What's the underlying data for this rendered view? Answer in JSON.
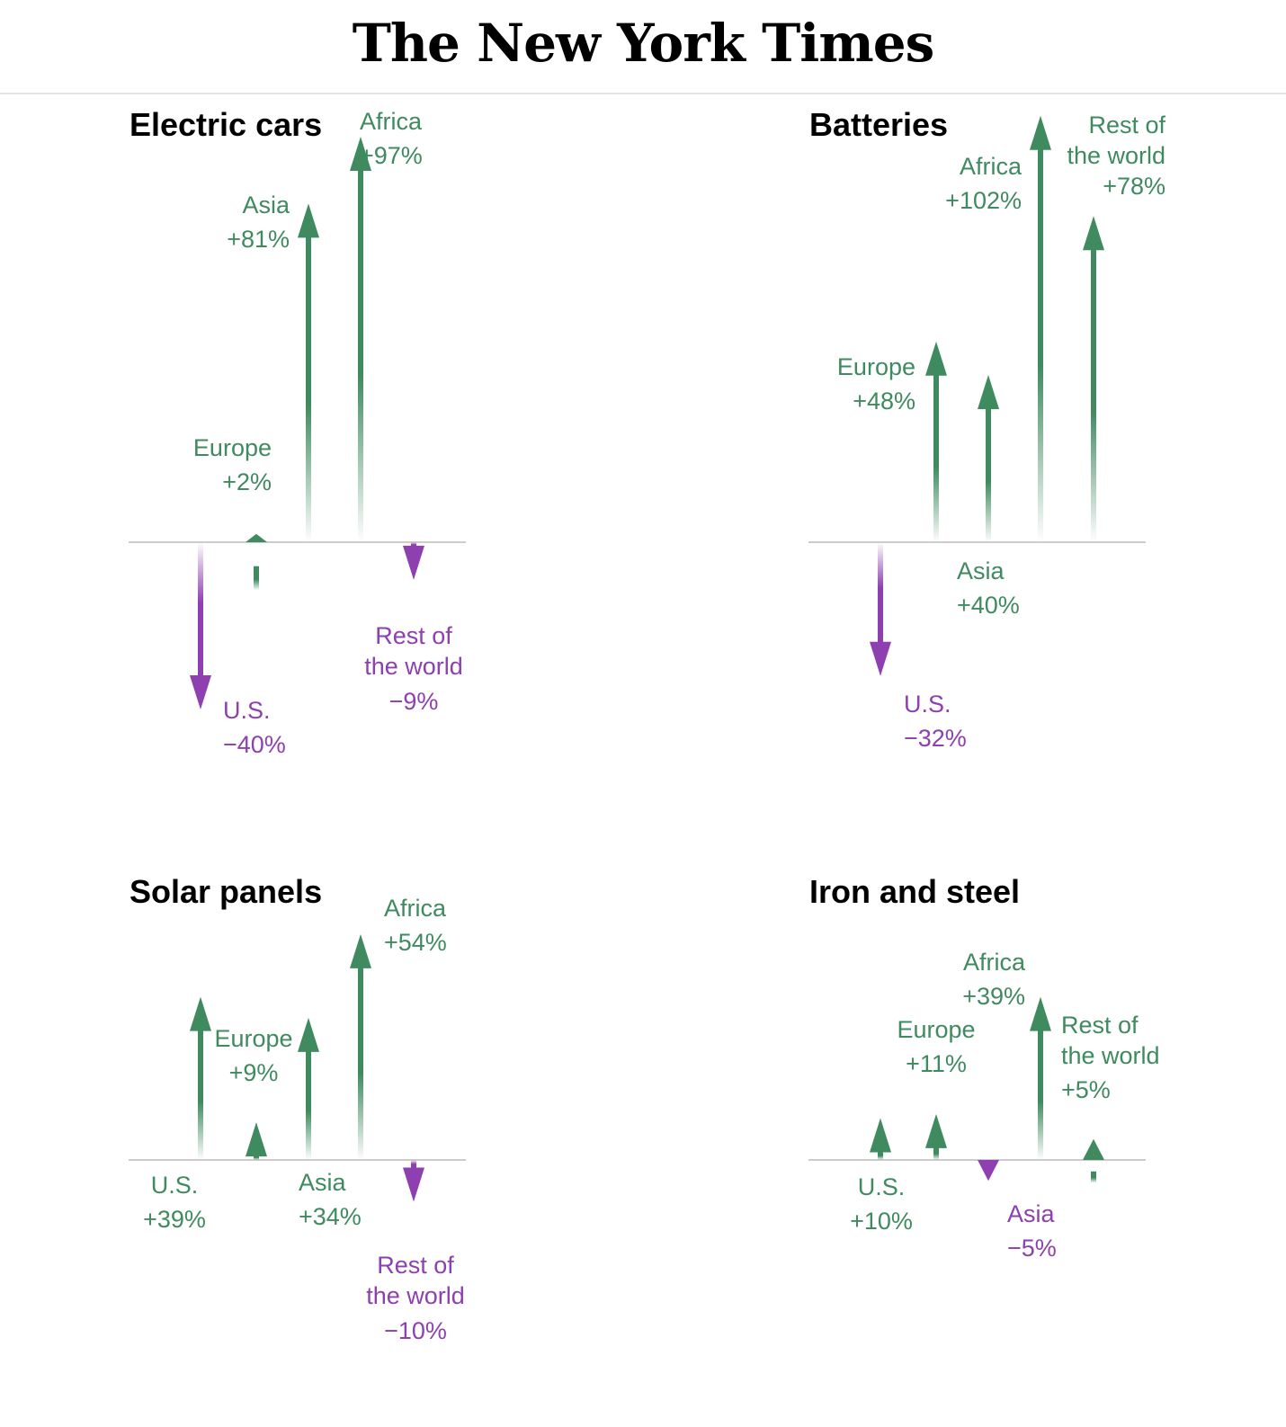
{
  "header": {
    "logo": "The New York Times"
  },
  "colors": {
    "increase": "#3f8a5f",
    "decrease": "#8e3fb0",
    "baseline": "#cccccc"
  },
  "chart_data": [
    {
      "type": "bar",
      "title": "Electric cars",
      "categories": [
        "U.S.",
        "Europe",
        "Asia",
        "Africa",
        "Rest of the world"
      ],
      "values": [
        -40,
        2,
        81,
        97,
        -9
      ],
      "labels": {
        "us": {
          "name": "U.S.",
          "value": "−40%"
        },
        "europe": {
          "name": "Europe",
          "value": "+2%"
        },
        "asia": {
          "name": "Asia",
          "value": "+81%"
        },
        "africa": {
          "name": "Africa",
          "value": "+97%"
        },
        "row": {
          "name1": "Rest of",
          "name2": "the world",
          "value": "−9%"
        }
      }
    },
    {
      "type": "bar",
      "title": "Batteries",
      "categories": [
        "U.S.",
        "Europe",
        "Asia",
        "Africa",
        "Rest of the world"
      ],
      "values": [
        -32,
        48,
        40,
        102,
        78
      ],
      "labels": {
        "us": {
          "name": "U.S.",
          "value": "−32%"
        },
        "europe": {
          "name": "Europe",
          "value": "+48%"
        },
        "asia": {
          "name": "Asia",
          "value": "+40%"
        },
        "africa": {
          "name": "Africa",
          "value": "+102%"
        },
        "row": {
          "name1": "Rest of",
          "name2": "the world",
          "value": "+78%"
        }
      }
    },
    {
      "type": "bar",
      "title": "Solar panels",
      "categories": [
        "U.S.",
        "Europe",
        "Asia",
        "Africa",
        "Rest of the world"
      ],
      "values": [
        39,
        9,
        34,
        54,
        -10
      ],
      "labels": {
        "us": {
          "name": "U.S.",
          "value": "+39%"
        },
        "europe": {
          "name": "Europe",
          "value": "+9%"
        },
        "asia": {
          "name": "Asia",
          "value": "+34%"
        },
        "africa": {
          "name": "Africa",
          "value": "+54%"
        },
        "row": {
          "name1": "Rest of",
          "name2": "the world",
          "value": "−10%"
        }
      }
    },
    {
      "type": "bar",
      "title": "Iron and steel",
      "categories": [
        "U.S.",
        "Europe",
        "Asia",
        "Africa",
        "Rest of the world"
      ],
      "values": [
        10,
        11,
        -5,
        39,
        5
      ],
      "labels": {
        "us": {
          "name": "U.S.",
          "value": "+10%"
        },
        "europe": {
          "name": "Europe",
          "value": "+11%"
        },
        "asia": {
          "name": "Asia",
          "value": "−5%"
        },
        "africa": {
          "name": "Africa",
          "value": "+39%"
        },
        "row": {
          "name1": "Rest of",
          "name2": "the world",
          "value": "+5%"
        }
      }
    }
  ]
}
